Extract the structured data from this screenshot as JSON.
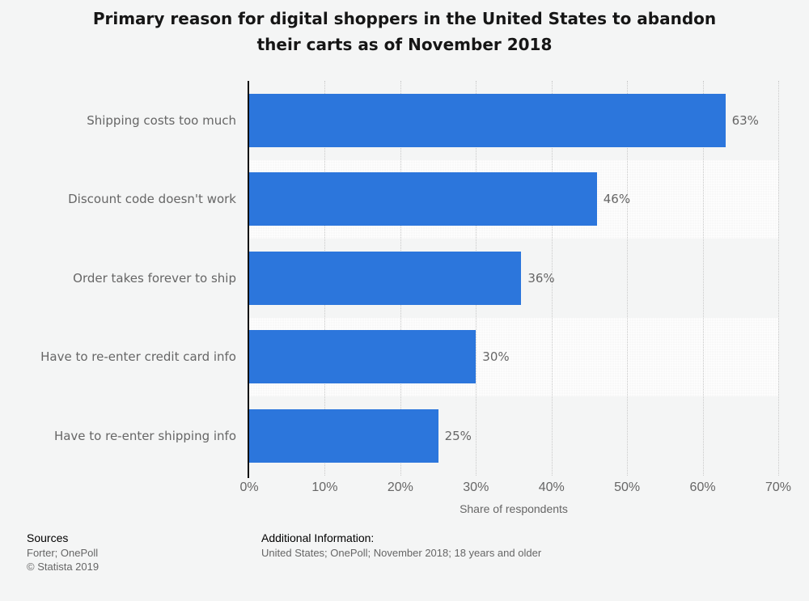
{
  "header": {
    "title_lines": [
      "Primary reason for digital shoppers in the United States to abandon",
      "their carts as of November 2018"
    ]
  },
  "chart_data": {
    "type": "bar",
    "orientation": "horizontal",
    "title": "Primary reason for digital shoppers in the United States to abandon their carts as of November 2018",
    "categories": [
      "Shipping costs too much",
      "Discount code doesn't work",
      "Order takes forever to ship",
      "Have to re-enter credit card info",
      "Have to re-enter shipping info"
    ],
    "values": [
      63,
      46,
      36,
      30,
      25
    ],
    "value_labels": [
      "63%",
      "46%",
      "36%",
      "30%",
      "25%"
    ],
    "xlabel": "Share of respondents",
    "ylabel": "",
    "xlim": [
      0,
      70
    ],
    "ticks": [
      0,
      10,
      20,
      30,
      40,
      50,
      60,
      70
    ],
    "tick_labels": [
      "0%",
      "10%",
      "20%",
      "30%",
      "40%",
      "50%",
      "60%",
      "70%"
    ],
    "grid": true,
    "grid_style": "dotted-vertical",
    "legend": false,
    "bar_color": "#2C76DC"
  },
  "colors": {
    "background": "#f4f5f5",
    "band_light": "#fafafa",
    "gridline": "#c9c9c9",
    "axis_line": "#0c0c0c",
    "muted_text": "#666666",
    "title_text": "#161616",
    "bar": "#2C76DC"
  },
  "footer": {
    "sources_label": "Sources",
    "sources_lines": [
      "Forter; OnePoll",
      "© Statista 2019"
    ],
    "additional_label": "Additional Information:",
    "additional_lines": [
      "United States; OnePoll; November 2018; 18 years and older"
    ]
  }
}
